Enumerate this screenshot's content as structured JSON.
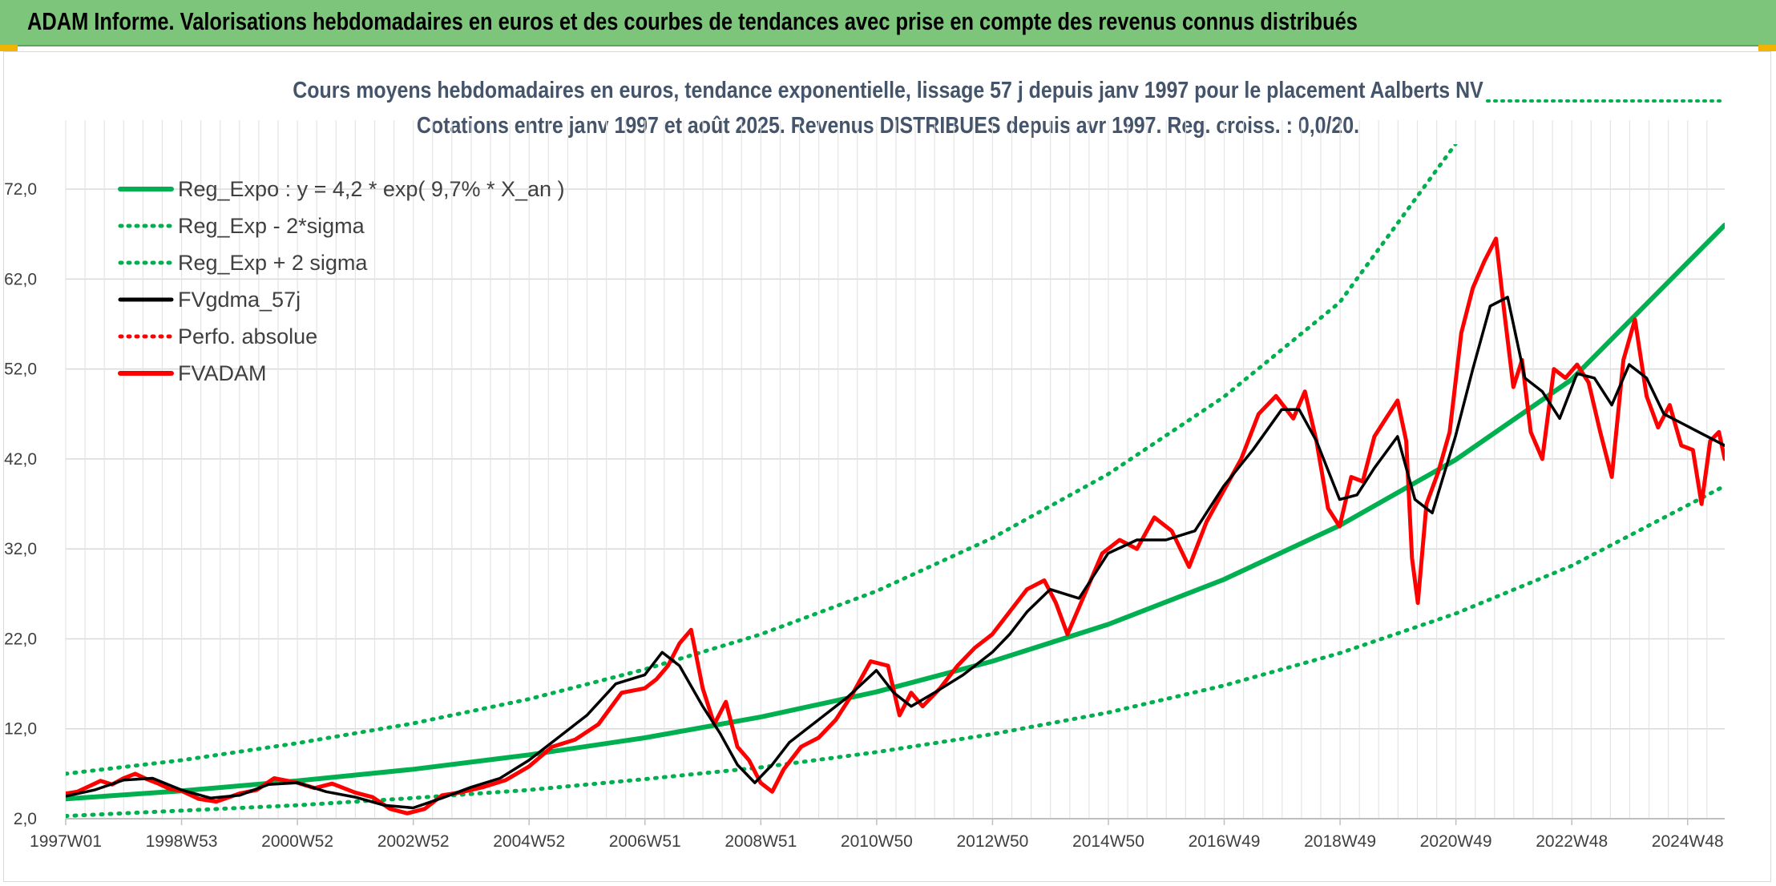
{
  "header": {
    "title": "ADAM Informe. Valorisations hebdomadaires en euros et des courbes de tendances avec prise en compte des revenus connus distribués"
  },
  "colors": {
    "banner": "#7cc57a",
    "trend": "#00b050",
    "price": "#ff0000",
    "smooth": "#000000",
    "grid": "#d9d9d9"
  },
  "chart_data": {
    "type": "line",
    "title_line1": "Cours moyens hebdomadaires en euros, tendance exponentielle, lissage 57 j depuis janv 1997 pour le placement Aalberts NV",
    "title_line2": "Cotations entre janv 1997 et août 2025. Revenus DISTRIBUES depuis avr 1997. Reg. croiss. : 0,0/20.",
    "xlabel": "",
    "ylabel": "",
    "ylim": [
      2,
      77
    ],
    "xlim": [
      1997.0,
      2025.65
    ],
    "y_ticks": [
      "2,0",
      "12,0",
      "22,0",
      "32,0",
      "42,0",
      "52,0",
      "62,0",
      "72,0"
    ],
    "x_ticks": [
      "1997W01",
      "1998W53",
      "2000W52",
      "2002W52",
      "2004W52",
      "2006W51",
      "2008W51",
      "2010W50",
      "2012W50",
      "2014W50",
      "2016W49",
      "2018W49",
      "2020W49",
      "2022W48",
      "2024W48"
    ],
    "grid": true,
    "legend_position": "top-left",
    "legend": [
      {
        "label": "Reg_Expo : y = 4,2 * exp( 9,7% *  X_an )",
        "color": "#00b050",
        "style": "solid-thick"
      },
      {
        "label": "Reg_Exp - 2*sigma",
        "color": "#00b050",
        "style": "dotted"
      },
      {
        "label": "Reg_Exp + 2 sigma",
        "color": "#00b050",
        "style": "dotted"
      },
      {
        "label": "FVgdma_57j",
        "color": "#000000",
        "style": "solid"
      },
      {
        "label": "Perfo. absolue",
        "color": "#ff0000",
        "style": "dotted"
      },
      {
        "label": "FVADAM",
        "color": "#ff0000",
        "style": "solid-thick"
      }
    ],
    "series": [
      {
        "name": "Reg_Expo : y = 4,2 * exp( 9,7% *  X_an )",
        "x": [
          1997,
          1999,
          2001,
          2003,
          2005,
          2007,
          2009,
          2011,
          2013,
          2015,
          2017,
          2019,
          2021,
          2023,
          2025.65
        ],
        "values": [
          4.2,
          5.1,
          6.2,
          7.5,
          9.1,
          11.0,
          13.3,
          16.1,
          19.5,
          23.6,
          28.6,
          34.6,
          41.9,
          50.8,
          68.0
        ]
      },
      {
        "name": "Reg_Exp - 2*sigma",
        "x": [
          1997,
          1999,
          2001,
          2003,
          2005,
          2007,
          2009,
          2011,
          2013,
          2015,
          2017,
          2019,
          2021,
          2023,
          2025.65
        ],
        "values": [
          2.3,
          2.9,
          3.5,
          4.3,
          5.2,
          6.4,
          7.7,
          9.4,
          11.4,
          13.8,
          16.8,
          20.4,
          24.8,
          30.1,
          39.0
        ]
      },
      {
        "name": "Reg_Exp + 2 sigma",
        "x": [
          1997,
          1999,
          2001,
          2003,
          2005,
          2007,
          2009,
          2011,
          2013,
          2015,
          2017,
          2019,
          2021.0
        ],
        "values": [
          7.0,
          8.5,
          10.4,
          12.6,
          15.3,
          18.6,
          22.5,
          27.3,
          33.2,
          40.3,
          48.9,
          59.4,
          77.0
        ]
      },
      {
        "name": "FVgdma_57j",
        "x": [
          1997.0,
          1997.5,
          1998.0,
          1998.5,
          1999.0,
          1999.5,
          2000.0,
          2000.5,
          2001.0,
          2001.5,
          2002.0,
          2002.5,
          2003.0,
          2003.5,
          2004.0,
          2004.5,
          2005.0,
          2005.5,
          2006.0,
          2006.5,
          2007.0,
          2007.3,
          2007.6,
          2008.0,
          2008.3,
          2008.6,
          2008.9,
          2009.2,
          2009.5,
          2010.0,
          2010.5,
          2011.0,
          2011.3,
          2011.6,
          2012.0,
          2012.5,
          2013.0,
          2013.3,
          2013.6,
          2014.0,
          2014.5,
          2015.0,
          2015.5,
          2016.0,
          2016.5,
          2017.0,
          2017.5,
          2018.0,
          2018.3,
          2018.6,
          2019.0,
          2019.3,
          2019.6,
          2020.0,
          2020.3,
          2020.6,
          2021.0,
          2021.3,
          2021.6,
          2021.9,
          2022.2,
          2022.5,
          2022.8,
          2023.1,
          2023.4,
          2023.7,
          2024.0,
          2024.3,
          2024.6,
          2024.9,
          2025.2,
          2025.65
        ],
        "values": [
          4.5,
          5.2,
          6.3,
          6.5,
          5.2,
          4.3,
          4.6,
          5.8,
          6.0,
          5.0,
          4.4,
          3.5,
          3.2,
          4.3,
          5.5,
          6.5,
          8.5,
          11.0,
          13.5,
          17.0,
          18.0,
          20.5,
          19.0,
          14.5,
          11.5,
          8.0,
          6.0,
          8.0,
          10.5,
          13.0,
          15.5,
          18.5,
          16.0,
          14.5,
          16.0,
          18.0,
          20.5,
          22.5,
          25.0,
          27.5,
          26.5,
          31.5,
          33.0,
          33.0,
          34.0,
          39.0,
          43.0,
          47.5,
          47.5,
          44.0,
          37.5,
          38.0,
          41.0,
          44.5,
          37.5,
          36.0,
          44.5,
          52.0,
          59.0,
          60.0,
          51.0,
          49.5,
          46.5,
          51.5,
          51.0,
          48.0,
          52.5,
          51.0,
          47.0,
          46.0,
          45.0,
          43.5
        ]
      },
      {
        "name": "FVADAM",
        "x": [
          1997.0,
          1997.2,
          1997.4,
          1997.6,
          1997.8,
          1998.0,
          1998.2,
          1998.4,
          1998.6,
          1998.8,
          1999.0,
          1999.3,
          1999.6,
          2000.0,
          2000.3,
          2000.6,
          2001.0,
          2001.3,
          2001.6,
          2002.0,
          2002.3,
          2002.6,
          2002.9,
          2003.2,
          2003.5,
          2003.8,
          2004.2,
          2004.6,
          2005.0,
          2005.4,
          2005.8,
          2006.2,
          2006.6,
          2007.0,
          2007.2,
          2007.4,
          2007.6,
          2007.8,
          2008.0,
          2008.2,
          2008.4,
          2008.6,
          2008.8,
          2009.0,
          2009.2,
          2009.4,
          2009.7,
          2010.0,
          2010.3,
          2010.6,
          2010.9,
          2011.2,
          2011.4,
          2011.6,
          2011.8,
          2012.1,
          2012.4,
          2012.7,
          2013.0,
          2013.3,
          2013.6,
          2013.9,
          2014.1,
          2014.3,
          2014.6,
          2014.9,
          2015.2,
          2015.5,
          2015.8,
          2016.1,
          2016.4,
          2016.7,
          2017.0,
          2017.3,
          2017.6,
          2017.9,
          2018.2,
          2018.4,
          2018.6,
          2018.8,
          2019.0,
          2019.2,
          2019.4,
          2019.6,
          2019.8,
          2020.0,
          2020.15,
          2020.25,
          2020.35,
          2020.5,
          2020.7,
          2020.9,
          2021.1,
          2021.3,
          2021.5,
          2021.7,
          2021.85,
          2022.0,
          2022.15,
          2022.3,
          2022.5,
          2022.7,
          2022.9,
          2023.1,
          2023.3,
          2023.5,
          2023.7,
          2023.9,
          2024.1,
          2024.3,
          2024.5,
          2024.7,
          2024.9,
          2025.1,
          2025.25,
          2025.4,
          2025.55,
          2025.65
        ],
        "values": [
          4.8,
          5.0,
          5.6,
          6.2,
          5.8,
          6.5,
          7.0,
          6.4,
          5.9,
          5.3,
          5.1,
          4.2,
          3.9,
          4.8,
          5.2,
          6.5,
          6.0,
          5.4,
          5.9,
          4.9,
          4.4,
          3.1,
          2.6,
          3.1,
          4.6,
          4.9,
          5.5,
          6.3,
          7.8,
          10.0,
          10.8,
          12.5,
          16.0,
          16.5,
          17.5,
          19.0,
          21.5,
          23.0,
          16.5,
          12.5,
          15.0,
          10.0,
          8.5,
          6.0,
          5.0,
          7.5,
          10.0,
          11.0,
          13.0,
          16.0,
          19.5,
          19.0,
          13.5,
          16.0,
          14.5,
          16.5,
          19.0,
          21.0,
          22.5,
          25.0,
          27.5,
          28.5,
          26.0,
          22.5,
          27.0,
          31.5,
          33.0,
          32.0,
          35.5,
          34.0,
          30.0,
          35.0,
          38.5,
          42.0,
          47.0,
          49.0,
          46.5,
          49.5,
          44.0,
          36.5,
          34.5,
          40.0,
          39.5,
          44.5,
          46.5,
          48.5,
          44.0,
          31.0,
          26.0,
          37.0,
          40.5,
          45.0,
          56.0,
          61.0,
          64.0,
          66.5,
          58.0,
          50.0,
          53.0,
          45.0,
          42.0,
          52.0,
          51.0,
          52.5,
          50.5,
          45.0,
          40.0,
          53.0,
          57.5,
          49.0,
          45.5,
          48.0,
          43.5,
          43.0,
          37.0,
          44.0,
          45.0,
          42.0
        ]
      }
    ]
  }
}
